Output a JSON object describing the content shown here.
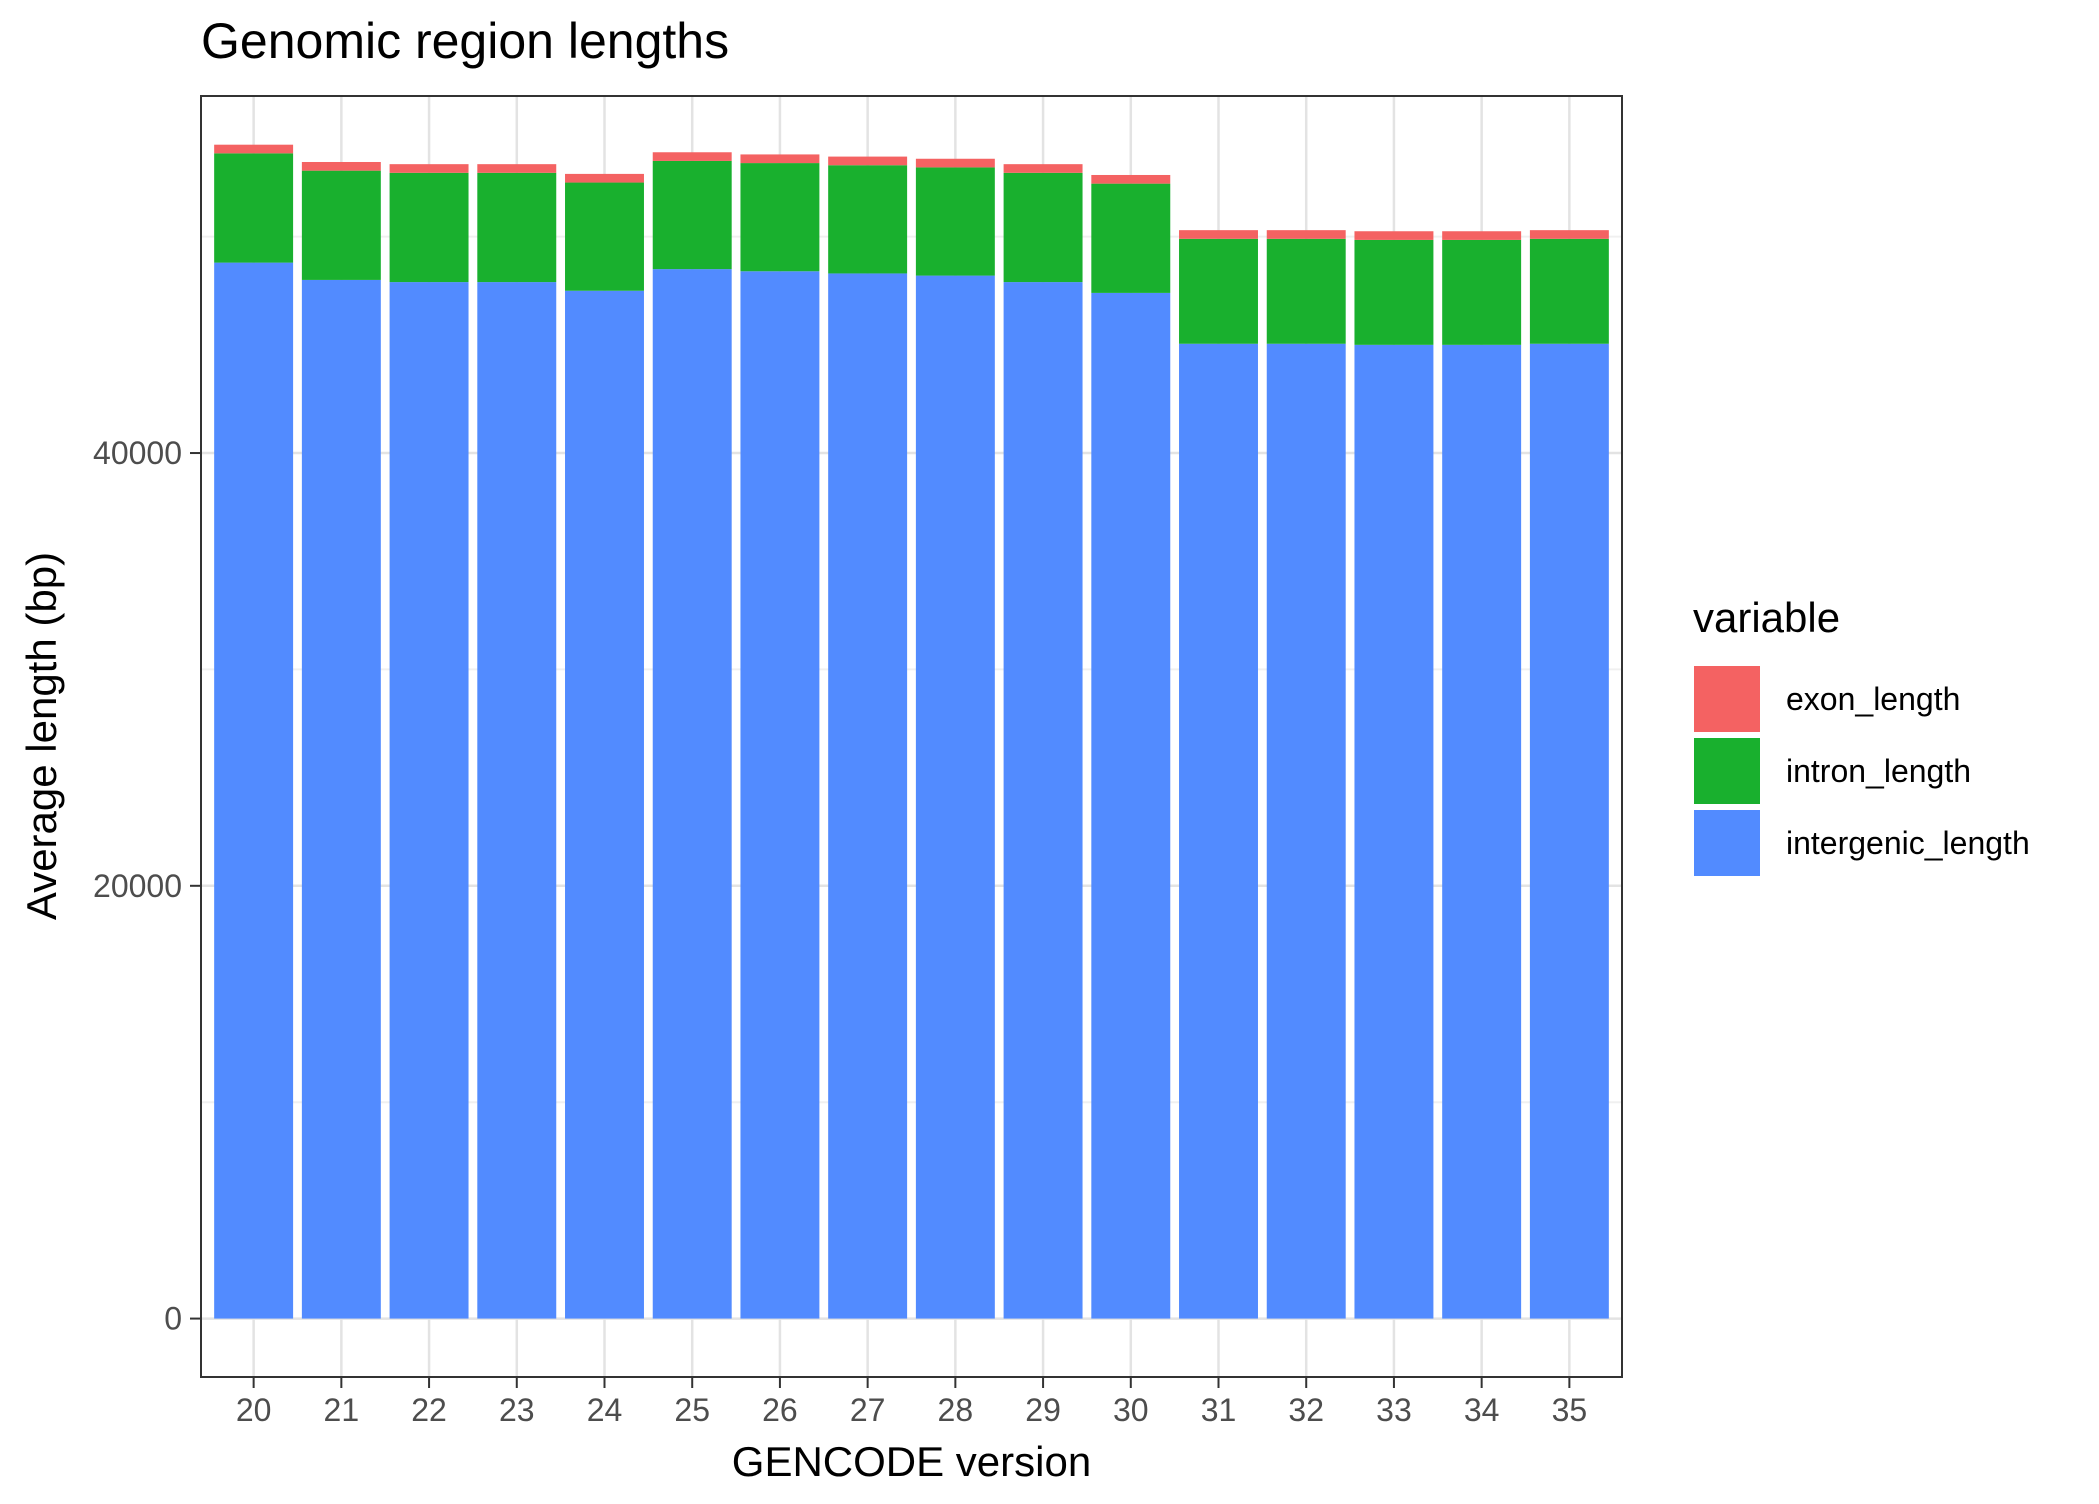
{
  "chart_data": {
    "type": "bar",
    "stacked": true,
    "title": "Genomic region lengths",
    "xlabel": "GENCODE version",
    "ylabel": "Average length (bp)",
    "ylim": [
      -2700,
      56500
    ],
    "yticks": [
      0,
      20000,
      40000
    ],
    "ytick_labels": [
      "0",
      "20000",
      "40000"
    ],
    "grid": true,
    "legend": {
      "title": "variable",
      "position": "right",
      "entries": [
        "exon_length",
        "intron_length",
        "intergenic_length"
      ]
    },
    "categories": [
      "20",
      "21",
      "22",
      "23",
      "24",
      "25",
      "26",
      "27",
      "28",
      "29",
      "30",
      "31",
      "32",
      "33",
      "34",
      "35"
    ],
    "series": [
      {
        "name": "intergenic_length",
        "color": "#528BFF",
        "values": [
          48800,
          48000,
          47900,
          47900,
          47500,
          48500,
          48400,
          48300,
          48200,
          47900,
          47400,
          45050,
          45050,
          45000,
          45000,
          45050
        ]
      },
      {
        "name": "intron_length",
        "color": "#19B02E",
        "values": [
          5050,
          5050,
          5050,
          5050,
          5000,
          5000,
          5000,
          5000,
          5000,
          5050,
          5050,
          4850,
          4850,
          4850,
          4850,
          4850
        ]
      },
      {
        "name": "exon_length",
        "color": "#F46262",
        "values": [
          400,
          400,
          400,
          400,
          400,
          400,
          400,
          400,
          400,
          400,
          400,
          400,
          400,
          400,
          400,
          400
        ]
      }
    ]
  }
}
